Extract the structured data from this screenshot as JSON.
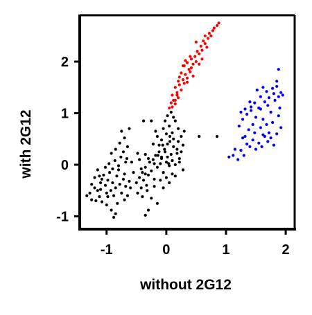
{
  "chart_data": {
    "type": "scatter",
    "xlabel": "without 2G12",
    "ylabel": "with 2G12",
    "xlim": [
      -1.45,
      2.15
    ],
    "ylim": [
      -1.25,
      2.9
    ],
    "xticks": [
      -1,
      0,
      1,
      2
    ],
    "xtick_labels": [
      "-1",
      "0",
      "1",
      "2"
    ],
    "yticks": [
      -1,
      0,
      1,
      2
    ],
    "ytick_labels": [
      "-1",
      "0",
      "1",
      "2"
    ],
    "grid": false,
    "series": [
      {
        "color": "#000000",
        "points": [
          [
            -1.33,
            -0.6
          ],
          [
            -1.28,
            -0.55
          ],
          [
            -1.25,
            -0.68
          ],
          [
            -1.2,
            -0.45
          ],
          [
            -1.15,
            -0.5
          ],
          [
            -1.12,
            -0.62
          ],
          [
            -1.1,
            -0.35
          ],
          [
            -1.08,
            -0.72
          ],
          [
            -1.05,
            -0.2
          ],
          [
            -1.02,
            -0.4
          ],
          [
            -1.0,
            -0.55
          ],
          [
            -0.98,
            -0.3
          ],
          [
            -0.95,
            -0.15
          ],
          [
            -0.93,
            -0.5
          ],
          [
            -0.9,
            -0.35
          ],
          [
            -0.88,
            -0.6
          ],
          [
            -0.85,
            -0.45
          ],
          [
            -0.83,
            -0.22
          ],
          [
            -0.8,
            -0.1
          ],
          [
            -0.78,
            -0.38
          ],
          [
            -0.75,
            -0.55
          ],
          [
            -0.72,
            -0.28
          ],
          [
            -0.7,
            -0.18
          ],
          [
            -0.68,
            -0.42
          ],
          [
            -0.65,
            -0.6
          ],
          [
            -0.62,
            -0.32
          ],
          [
            -1.15,
            -0.1
          ],
          [
            -1.12,
            -0.22
          ],
          [
            -1.08,
            -0.28
          ],
          [
            -1.02,
            -0.05
          ],
          [
            -0.96,
            0.02
          ],
          [
            -0.9,
            -0.08
          ],
          [
            -0.86,
            0.08
          ],
          [
            -0.8,
            -0.02
          ],
          [
            -0.76,
            0.15
          ],
          [
            -0.72,
            0.25
          ],
          [
            -0.68,
            0.05
          ],
          [
            -0.66,
            0.12
          ],
          [
            -0.92,
            0.22
          ],
          [
            -0.85,
            0.3
          ],
          [
            -0.78,
            0.42
          ],
          [
            -0.7,
            0.52
          ],
          [
            -0.65,
            0.35
          ],
          [
            -0.75,
            0.65
          ],
          [
            -0.62,
            0.7
          ],
          [
            -1.0,
            -0.78
          ],
          [
            -0.92,
            -0.88
          ],
          [
            -0.85,
            -0.95
          ],
          [
            -1.2,
            -0.25
          ],
          [
            -1.25,
            -0.38
          ],
          [
            -1.18,
            -0.7
          ],
          [
            -1.1,
            -0.48
          ],
          [
            -0.98,
            -0.62
          ],
          [
            -0.82,
            -0.75
          ],
          [
            -0.7,
            -0.68
          ],
          [
            -0.88,
            -1.02
          ],
          [
            -0.5,
            -0.35
          ],
          [
            -0.45,
            -0.25
          ],
          [
            -0.42,
            -0.45
          ],
          [
            -0.4,
            -0.15
          ],
          [
            -0.38,
            -0.3
          ],
          [
            -0.35,
            -0.05
          ],
          [
            -0.33,
            -0.4
          ],
          [
            -0.3,
            -0.2
          ],
          [
            -0.28,
            0.05
          ],
          [
            -0.25,
            -0.12
          ],
          [
            -0.22,
            0.1
          ],
          [
            -0.2,
            -0.28
          ],
          [
            -0.18,
            0.18
          ],
          [
            -0.15,
            -0.05
          ],
          [
            -0.12,
            0.25
          ],
          [
            -0.1,
            0.02
          ],
          [
            -0.08,
            0.12
          ],
          [
            -0.05,
            -0.15
          ],
          [
            -0.03,
            0.3
          ],
          [
            0.0,
            0.05
          ],
          [
            0.02,
            0.15
          ],
          [
            0.05,
            -0.02
          ],
          [
            0.08,
            0.2
          ],
          [
            0.1,
            0.08
          ],
          [
            0.12,
            0.35
          ],
          [
            0.15,
            0.0
          ],
          [
            0.18,
            0.22
          ],
          [
            0.2,
            0.45
          ],
          [
            0.22,
            0.12
          ],
          [
            -0.48,
            -0.55
          ],
          [
            -0.4,
            -0.62
          ],
          [
            -0.32,
            -0.5
          ],
          [
            -0.25,
            -0.65
          ],
          [
            -0.2,
            -0.42
          ],
          [
            -0.15,
            -0.75
          ],
          [
            -0.3,
            -0.88
          ],
          [
            -0.1,
            -0.3
          ],
          [
            -0.05,
            -0.45
          ],
          [
            0.0,
            -0.25
          ],
          [
            0.05,
            -0.35
          ],
          [
            0.1,
            -0.18
          ],
          [
            -0.35,
            -0.98
          ],
          [
            -0.55,
            -0.15
          ],
          [
            -0.6,
            -0.45
          ],
          [
            -0.58,
            0.05
          ],
          [
            -0.45,
            0.1
          ],
          [
            -0.35,
            0.2
          ],
          [
            -0.22,
            0.4
          ],
          [
            -0.15,
            0.55
          ],
          [
            -0.08,
            0.48
          ],
          [
            0.0,
            0.6
          ],
          [
            0.05,
            0.75
          ],
          [
            0.1,
            0.62
          ],
          [
            0.15,
            0.85
          ],
          [
            0.2,
            0.7
          ],
          [
            0.25,
            0.55
          ],
          [
            0.02,
            0.95
          ],
          [
            0.08,
            1.02
          ],
          [
            -0.02,
            0.85
          ],
          [
            0.12,
            0.5
          ],
          [
            0.18,
            0.3
          ],
          [
            0.25,
            0.25
          ],
          [
            0.22,
            0.05
          ],
          [
            0.28,
            -0.1
          ],
          [
            0.15,
            -0.22
          ],
          [
            -0.05,
            0.7
          ],
          [
            -0.12,
            0.38
          ],
          [
            -0.18,
            0.65
          ],
          [
            -0.25,
            0.85
          ],
          [
            -0.38,
            0.85
          ],
          [
            0.28,
            0.38
          ],
          [
            0.3,
            0.65
          ],
          [
            0.02,
            0.4
          ],
          [
            -0.02,
            0.25
          ],
          [
            0.06,
            0.45
          ],
          [
            -0.08,
            0.15
          ],
          [
            0.04,
            0.02
          ],
          [
            -0.14,
            0.18
          ],
          [
            -0.2,
            0.02
          ],
          [
            -0.3,
            0.12
          ],
          [
            -0.42,
            -0.08
          ],
          [
            -0.48,
            0.22
          ],
          [
            -0.35,
            -0.18
          ],
          [
            0.55,
            0.55
          ],
          [
            0.85,
            0.55
          ],
          [
            0.12,
            0.92
          ],
          [
            0.06,
            0.55
          ],
          [
            -0.06,
            0.38
          ]
        ]
      },
      {
        "color": "#ff0000",
        "points": [
          [
            0.05,
            1.1
          ],
          [
            0.1,
            1.12
          ],
          [
            0.12,
            1.25
          ],
          [
            0.15,
            1.18
          ],
          [
            0.1,
            1.35
          ],
          [
            0.18,
            1.4
          ],
          [
            0.2,
            1.3
          ],
          [
            0.15,
            1.5
          ],
          [
            0.22,
            1.55
          ],
          [
            0.25,
            1.45
          ],
          [
            0.28,
            1.65
          ],
          [
            0.2,
            1.62
          ],
          [
            0.3,
            1.58
          ],
          [
            0.32,
            1.75
          ],
          [
            0.35,
            1.68
          ],
          [
            0.38,
            1.85
          ],
          [
            0.3,
            1.92
          ],
          [
            0.35,
            1.98
          ],
          [
            0.4,
            1.8
          ],
          [
            0.42,
            2.05
          ],
          [
            0.45,
            1.95
          ],
          [
            0.48,
            2.1
          ],
          [
            0.5,
            2.0
          ],
          [
            0.52,
            2.2
          ],
          [
            0.55,
            2.15
          ],
          [
            0.58,
            2.3
          ],
          [
            0.6,
            2.22
          ],
          [
            0.62,
            2.4
          ],
          [
            0.65,
            2.35
          ],
          [
            0.7,
            2.45
          ],
          [
            0.72,
            2.55
          ],
          [
            0.75,
            2.5
          ],
          [
            0.78,
            2.6
          ],
          [
            0.8,
            2.65
          ],
          [
            0.85,
            2.7
          ],
          [
            0.88,
            2.75
          ],
          [
            0.25,
            1.78
          ],
          [
            0.4,
            2.1
          ],
          [
            0.55,
            1.95
          ],
          [
            0.45,
            1.72
          ],
          [
            0.35,
            1.6
          ],
          [
            0.6,
            2.05
          ],
          [
            0.65,
            2.5
          ],
          [
            0.15,
            1.25
          ],
          [
            0.18,
            1.35
          ],
          [
            0.28,
            1.92
          ],
          [
            0.32,
            2.02
          ],
          [
            0.68,
            2.28
          ],
          [
            0.5,
            2.38
          ],
          [
            0.42,
            1.88
          ],
          [
            0.08,
            1.2
          ],
          [
            0.22,
            1.7
          ]
        ]
      },
      {
        "color": "#0000ff",
        "points": [
          [
            1.05,
            0.15
          ],
          [
            1.12,
            0.18
          ],
          [
            1.2,
            0.1
          ],
          [
            1.25,
            0.28
          ],
          [
            1.3,
            0.18
          ],
          [
            1.35,
            0.4
          ],
          [
            1.28,
            0.52
          ],
          [
            1.4,
            0.35
          ],
          [
            1.45,
            0.48
          ],
          [
            1.5,
            0.3
          ],
          [
            1.55,
            0.42
          ],
          [
            1.6,
            0.35
          ],
          [
            1.65,
            0.55
          ],
          [
            1.7,
            0.45
          ],
          [
            1.75,
            0.52
          ],
          [
            1.8,
            0.38
          ],
          [
            1.85,
            0.6
          ],
          [
            1.48,
            0.62
          ],
          [
            1.38,
            0.68
          ],
          [
            1.58,
            0.72
          ],
          [
            1.68,
            0.78
          ],
          [
            1.78,
            0.82
          ],
          [
            1.88,
            0.95
          ],
          [
            1.92,
            0.72
          ],
          [
            1.22,
            0.75
          ],
          [
            1.28,
            0.88
          ],
          [
            1.35,
            0.98
          ],
          [
            1.42,
            1.05
          ],
          [
            1.5,
            0.92
          ],
          [
            1.55,
            1.1
          ],
          [
            1.62,
            0.88
          ],
          [
            1.7,
            1.15
          ],
          [
            1.75,
            1.02
          ],
          [
            1.82,
            1.25
          ],
          [
            1.88,
            1.32
          ],
          [
            1.92,
            1.4
          ],
          [
            1.85,
            1.52
          ],
          [
            1.8,
            1.38
          ],
          [
            1.72,
            1.3
          ],
          [
            1.65,
            1.22
          ],
          [
            1.58,
            1.32
          ],
          [
            1.48,
            1.2
          ],
          [
            1.42,
            1.12
          ],
          [
            1.32,
            1.08
          ],
          [
            1.25,
            1.02
          ],
          [
            1.4,
            1.22
          ],
          [
            1.88,
            1.85
          ],
          [
            1.85,
            1.62
          ],
          [
            1.78,
            1.48
          ],
          [
            1.68,
            1.42
          ],
          [
            1.62,
            1.5
          ],
          [
            1.52,
            1.45
          ],
          [
            1.58,
            1.08
          ],
          [
            1.45,
            0.78
          ],
          [
            1.32,
            0.55
          ],
          [
            1.15,
            0.3
          ],
          [
            1.95,
            1.35
          ],
          [
            1.9,
            1.1
          ],
          [
            1.72,
            0.62
          ],
          [
            1.62,
            0.58
          ]
        ]
      }
    ]
  }
}
